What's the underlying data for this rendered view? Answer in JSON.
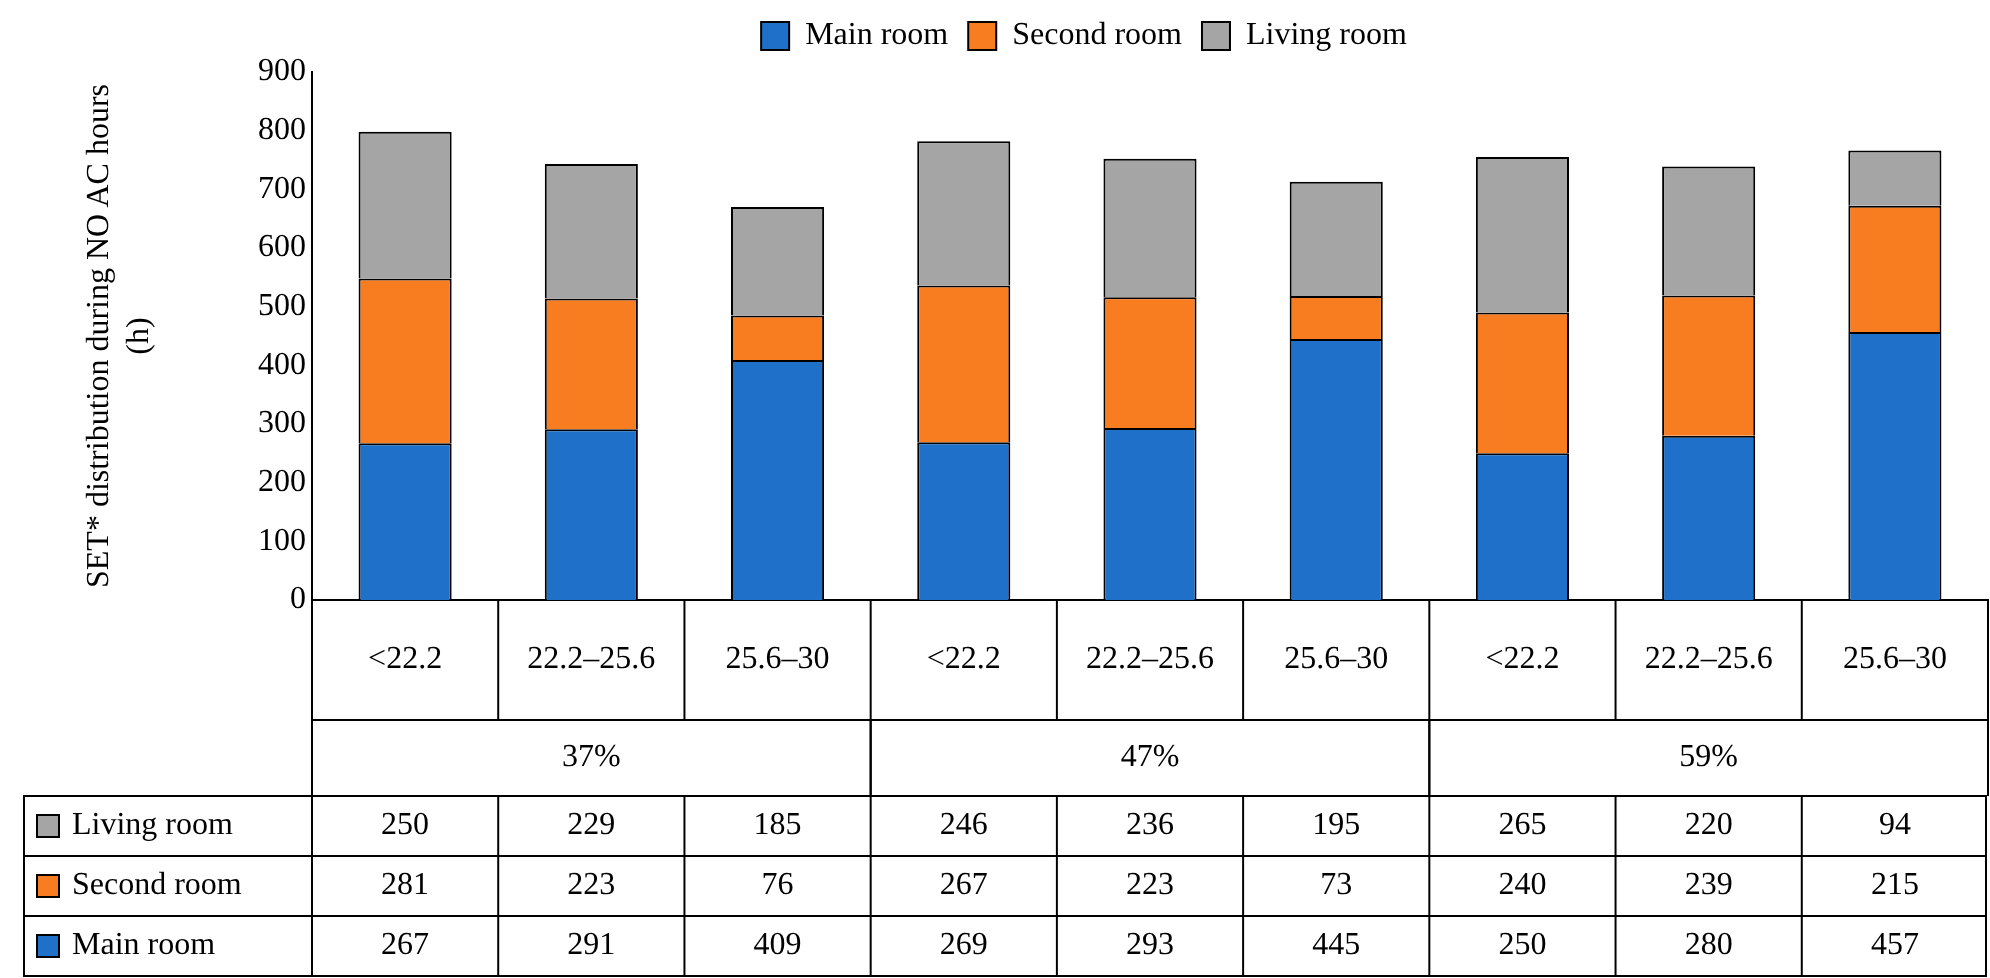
{
  "chart_data": {
    "type": "bar",
    "stacked": true,
    "ylabel": "SET* distribution during NO AC hours (h)",
    "categories": [
      "<22.2",
      "22.2–25.6",
      "25.6–30",
      "<22.2",
      "22.2–25.6",
      "25.6–30",
      "<22.2",
      "22.2–25.6",
      "25.6–30"
    ],
    "annotations": [
      "37%",
      "47%",
      "59%"
    ],
    "series": [
      {
        "name": "Main room",
        "color": "#1f70c8",
        "values": [
          267,
          291,
          409,
          269,
          293,
          445,
          250,
          280,
          457
        ]
      },
      {
        "name": "Second room",
        "color": "#f77d20",
        "values": [
          281,
          223,
          76,
          267,
          223,
          73,
          240,
          239,
          215
        ]
      },
      {
        "name": "Living room",
        "color": "#a5a5a5",
        "values": [
          250,
          229,
          185,
          246,
          236,
          195,
          265,
          220,
          94
        ]
      }
    ],
    "ylim": [
      0,
      900
    ],
    "yticks": [
      0,
      100,
      200,
      300,
      400,
      500,
      600,
      700,
      800,
      900
    ],
    "grid": false,
    "legend": "top",
    "data_labels": true
  }
}
